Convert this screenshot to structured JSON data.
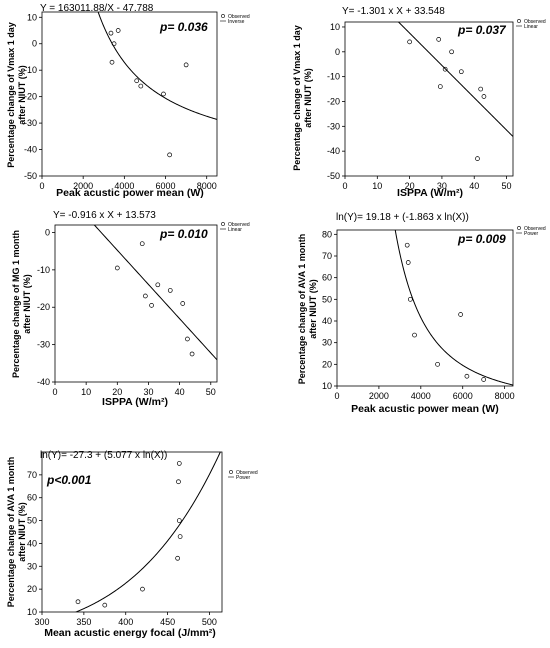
{
  "chart_data": [
    {
      "type": "scatter",
      "equation": "Y = 163011.88/X - 47.788",
      "p_value": "p= 0.036",
      "xlabel": "Peak acustic power mean (W)",
      "ylabel": [
        "Percentage change of Vmax 1 day",
        "after NIUT (%)"
      ],
      "xlim": [
        0,
        8500
      ],
      "ylim": [
        -50,
        12
      ],
      "xticks": [
        0,
        2000,
        4000,
        6000,
        8000
      ],
      "yticks": [
        -50,
        -40,
        -30,
        -20,
        -10,
        0,
        10
      ],
      "legend": [
        "Observed",
        "Inverse"
      ],
      "fit": {
        "kind": "inverse",
        "a": 163011.88,
        "b": -47.788
      },
      "points": [
        {
          "x": 3350,
          "y": 4
        },
        {
          "x": 3400,
          "y": -7
        },
        {
          "x": 3500,
          "y": 0
        },
        {
          "x": 3700,
          "y": 5
        },
        {
          "x": 4600,
          "y": -14
        },
        {
          "x": 4800,
          "y": -16
        },
        {
          "x": 5900,
          "y": -19
        },
        {
          "x": 6200,
          "y": -42
        },
        {
          "x": 7000,
          "y": -8
        }
      ]
    },
    {
      "type": "scatter",
      "equation": "Y= -1.301 x X + 33.548",
      "p_value": "p= 0.037",
      "xlabel": "ISPPA (W/m²)",
      "ylabel": [
        "Percentage change of Vmax 1 day",
        "after NIUT (%)"
      ],
      "xlim": [
        0,
        52
      ],
      "ylim": [
        -50,
        12
      ],
      "xticks": [
        0,
        10,
        20,
        30,
        40,
        50
      ],
      "yticks": [
        -50,
        -40,
        -30,
        -20,
        -10,
        0,
        10
      ],
      "legend": [
        "Observed",
        "Linear"
      ],
      "fit": {
        "kind": "linear",
        "a": -1.301,
        "b": 33.548
      },
      "points": [
        {
          "x": 20,
          "y": 4
        },
        {
          "x": 29,
          "y": 5
        },
        {
          "x": 29.5,
          "y": -14
        },
        {
          "x": 31,
          "y": -7
        },
        {
          "x": 33,
          "y": 0
        },
        {
          "x": 36,
          "y": -8
        },
        {
          "x": 41,
          "y": -43
        },
        {
          "x": 42,
          "y": -15
        },
        {
          "x": 43,
          "y": -18
        }
      ]
    },
    {
      "type": "scatter",
      "equation": "Y= -0.916 x X + 13.573",
      "p_value": "p= 0.010",
      "xlabel": "ISPPA (W/m²)",
      "ylabel": [
        "Percentage change of MG 1 month",
        "after NIUT (%)"
      ],
      "xlim": [
        0,
        52
      ],
      "ylim": [
        -40,
        2
      ],
      "xticks": [
        0,
        10,
        20,
        30,
        40,
        50
      ],
      "yticks": [
        -40,
        -30,
        -20,
        -10,
        0
      ],
      "legend": [
        "Observed",
        "Linear"
      ],
      "fit": {
        "kind": "linear",
        "a": -0.916,
        "b": 13.573
      },
      "points": [
        {
          "x": 20,
          "y": -9.5
        },
        {
          "x": 28,
          "y": -3
        },
        {
          "x": 29,
          "y": -17
        },
        {
          "x": 31,
          "y": -19.5
        },
        {
          "x": 33,
          "y": -14
        },
        {
          "x": 37,
          "y": -15.5
        },
        {
          "x": 41,
          "y": -19
        },
        {
          "x": 42.5,
          "y": -28.5
        },
        {
          "x": 44,
          "y": -32.5
        }
      ]
    },
    {
      "type": "scatter",
      "equation": "ln(Y)= 19.18 + (-1.863 x ln(X))",
      "p_value": "p= 0.009",
      "xlabel": "Peak acustic power mean (W)",
      "ylabel": [
        "Percentage change of AVA 1 month",
        "after NIUT (%)"
      ],
      "xlim": [
        0,
        8400
      ],
      "ylim": [
        10,
        82
      ],
      "xticks": [
        0,
        2000,
        4000,
        6000,
        8000
      ],
      "yticks": [
        10,
        20,
        30,
        40,
        50,
        60,
        70,
        80
      ],
      "legend": [
        "Observed",
        "Power"
      ],
      "fit": {
        "kind": "power",
        "a": 19.18,
        "b": -1.863
      },
      "points": [
        {
          "x": 3350,
          "y": 75
        },
        {
          "x": 3400,
          "y": 67
        },
        {
          "x": 3500,
          "y": 50
        },
        {
          "x": 3700,
          "y": 33.5
        },
        {
          "x": 4800,
          "y": 20
        },
        {
          "x": 5900,
          "y": 43
        },
        {
          "x": 6200,
          "y": 14.5
        },
        {
          "x": 7000,
          "y": 13
        }
      ]
    },
    {
      "type": "scatter",
      "equation": "ln(Y)= -27.3 + (5.077 x ln(X))",
      "p_value": "p<0.001",
      "xlabel": "Mean acustic energy focal (J/mm²)",
      "ylabel": [
        "Percentage change of AVA 1 month",
        "after NIUT (%)"
      ],
      "xlim": [
        300,
        515
      ],
      "ylim": [
        10,
        80
      ],
      "xticks": [
        300,
        350,
        400,
        450,
        500
      ],
      "yticks": [
        10,
        20,
        30,
        40,
        50,
        60,
        70
      ],
      "legend": [
        "Observed",
        "Power"
      ],
      "fit": {
        "kind": "power",
        "a": -27.3,
        "b": 5.077
      },
      "points": [
        {
          "x": 343,
          "y": 14.5
        },
        {
          "x": 375,
          "y": 13
        },
        {
          "x": 420,
          "y": 20
        },
        {
          "x": 462,
          "y": 33.5
        },
        {
          "x": 463,
          "y": 67
        },
        {
          "x": 464,
          "y": 75
        },
        {
          "x": 464,
          "y": 50
        },
        {
          "x": 465,
          "y": 43
        }
      ]
    }
  ]
}
